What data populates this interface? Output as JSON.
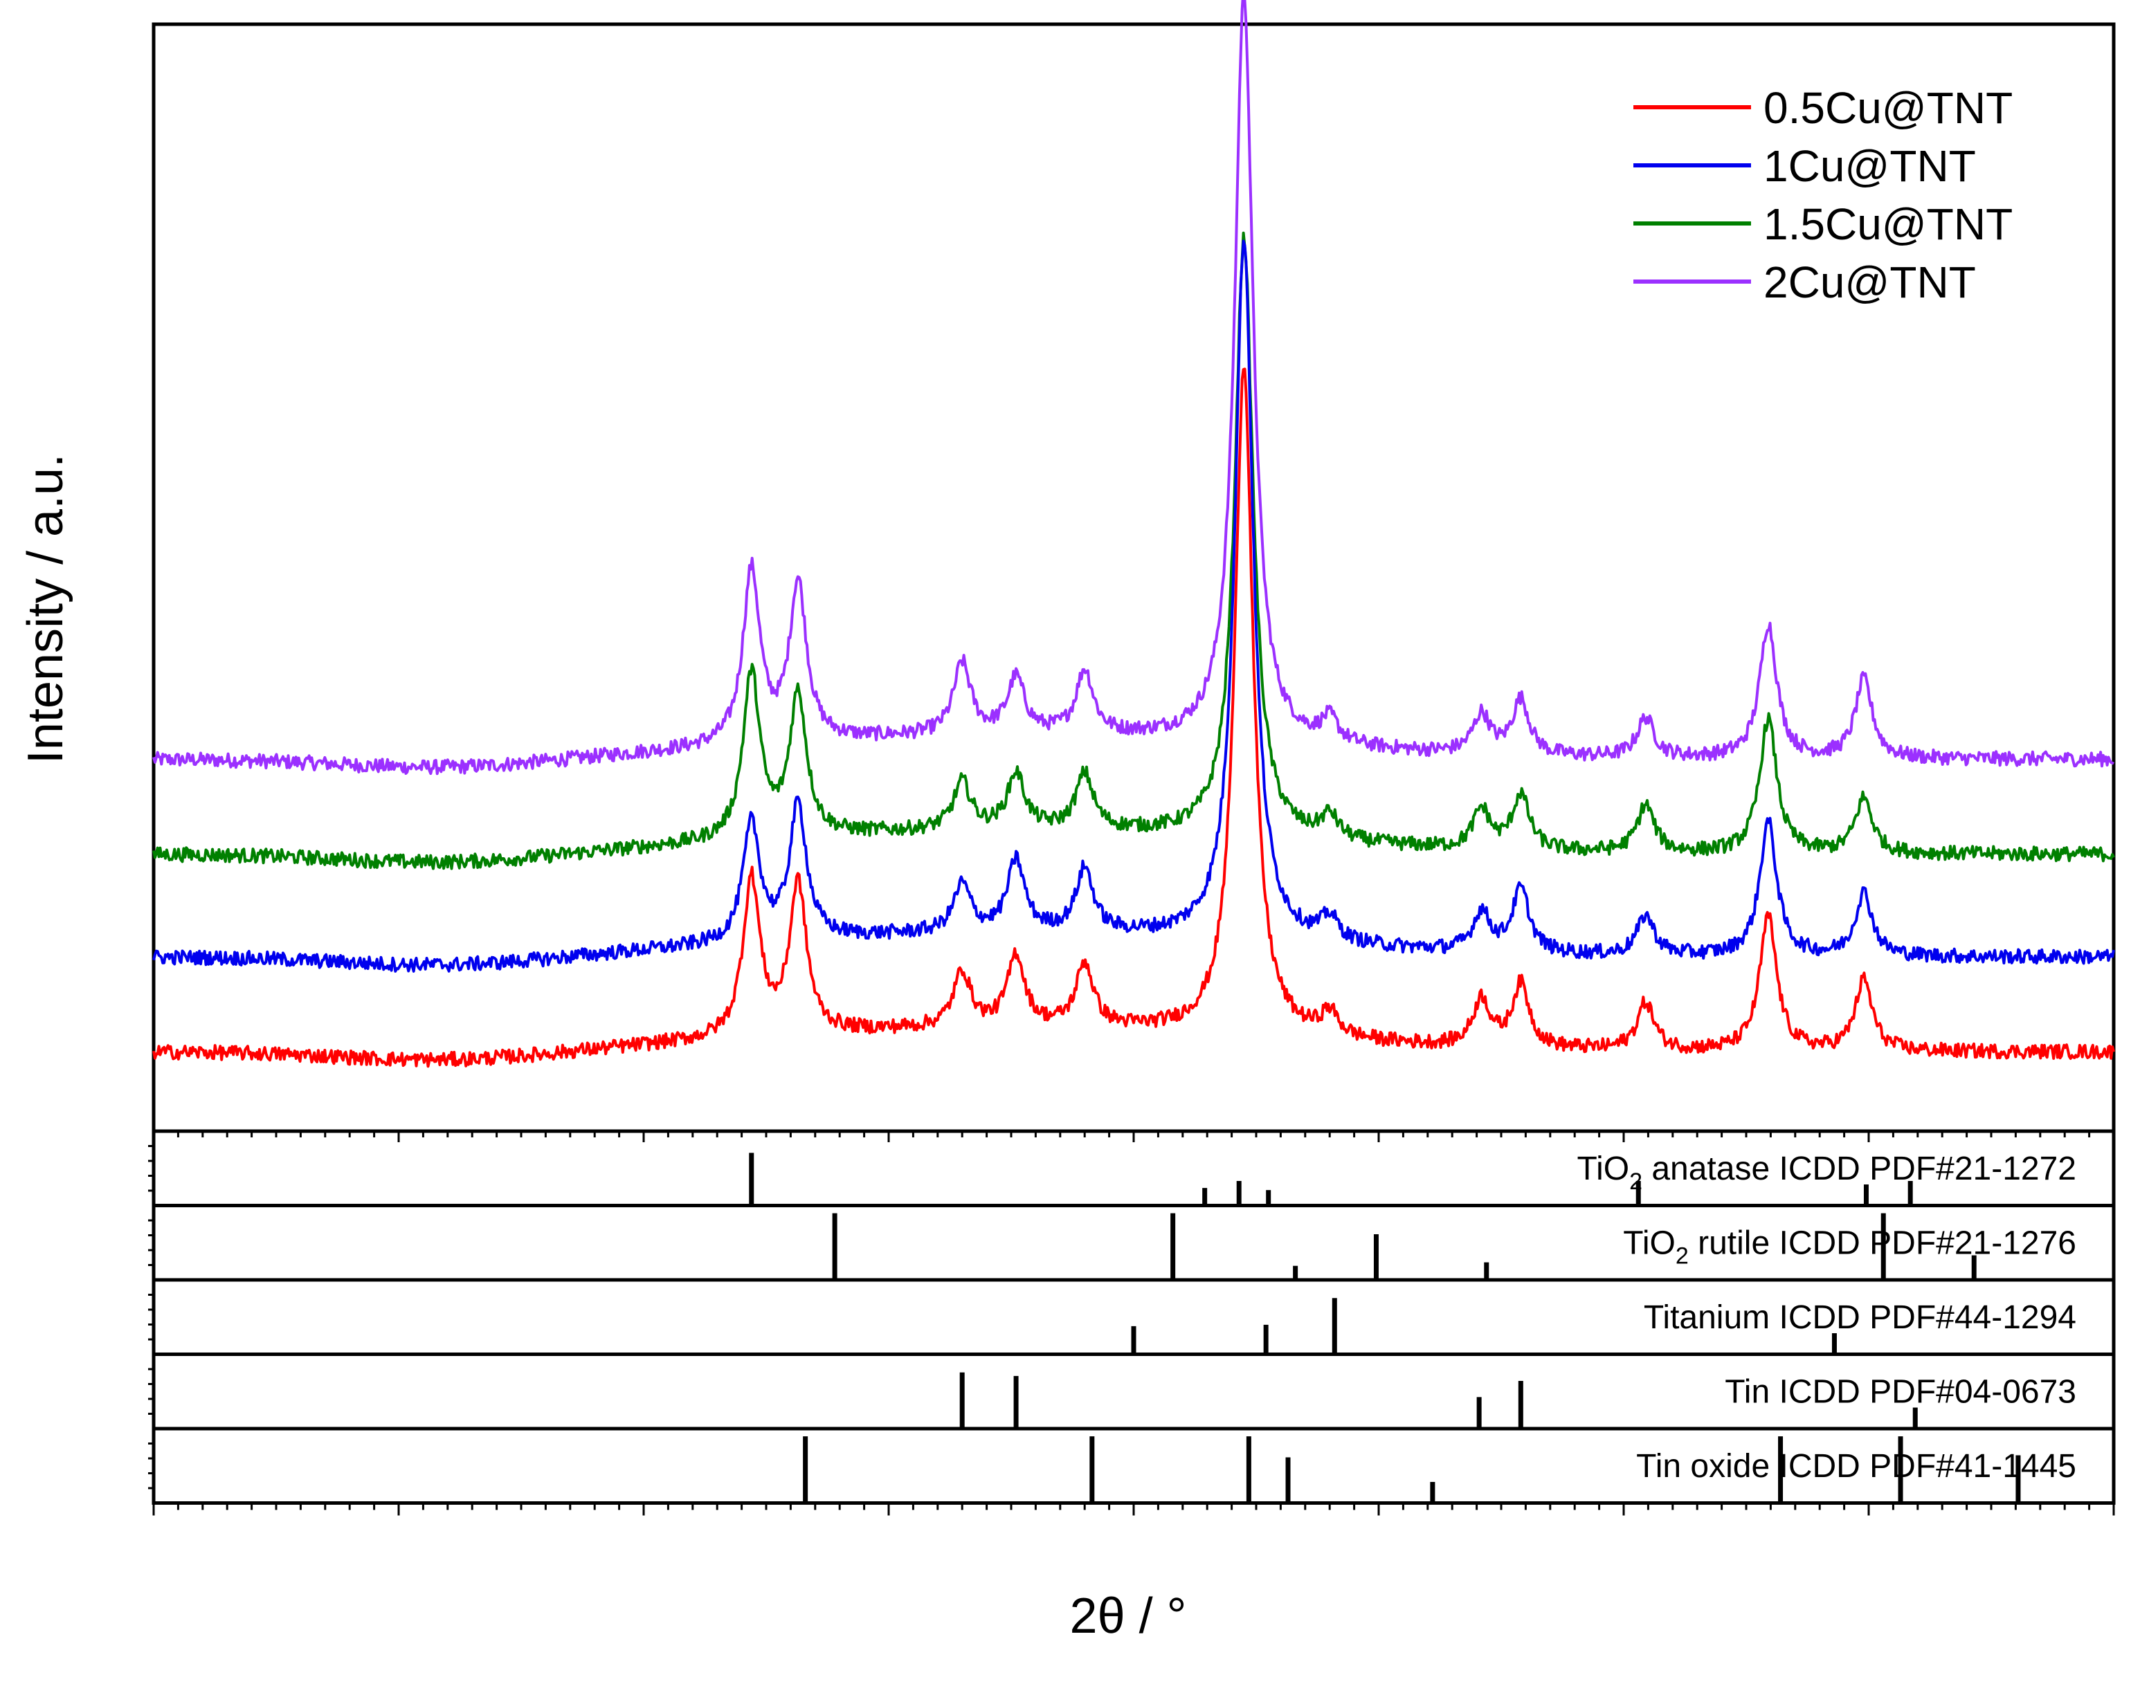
{
  "chart_data": {
    "type": "line",
    "title": "",
    "xlabel": "2θ / °",
    "ylabel": "Intensity / a.u.",
    "xlim": [
      10,
      90
    ],
    "ylim": [
      0,
      14
    ],
    "x_tick_labels_visible": false,
    "y_tick_labels_visible": false,
    "legend": {
      "position": "top-right",
      "entries": [
        "0.5Cu@TNT",
        "1Cu@TNT",
        "1.5Cu@TNT",
        "2Cu@TNT"
      ]
    },
    "peak_positions_2theta": [
      34.4,
      36.3,
      43.0,
      45.2,
      48.0,
      54.5,
      58.0,
      64.2,
      65.8,
      70.9,
      75.9,
      79.8
    ],
    "series": [
      {
        "name": "0.5Cu@TNT",
        "color": "#ff0000",
        "baseline": 1.0,
        "peaks": [
          {
            "x": 34.4,
            "intensity": 2.0
          },
          {
            "x": 36.3,
            "intensity": 1.9
          },
          {
            "x": 43.0,
            "intensity": 0.7
          },
          {
            "x": 45.2,
            "intensity": 0.9
          },
          {
            "x": 48.0,
            "intensity": 0.8
          },
          {
            "x": 54.5,
            "intensity": 8.5
          },
          {
            "x": 58.0,
            "intensity": 0.3
          },
          {
            "x": 64.2,
            "intensity": 0.6
          },
          {
            "x": 65.8,
            "intensity": 0.8
          },
          {
            "x": 70.9,
            "intensity": 0.6
          },
          {
            "x": 75.9,
            "intensity": 1.7
          },
          {
            "x": 79.8,
            "intensity": 0.9
          }
        ]
      },
      {
        "name": "1Cu@TNT",
        "color": "#0000ee",
        "baseline": 2.2,
        "peaks": [
          {
            "x": 34.4,
            "intensity": 1.5
          },
          {
            "x": 36.3,
            "intensity": 1.7
          },
          {
            "x": 43.0,
            "intensity": 0.6
          },
          {
            "x": 45.2,
            "intensity": 0.9
          },
          {
            "x": 48.0,
            "intensity": 0.8
          },
          {
            "x": 54.5,
            "intensity": 8.9
          },
          {
            "x": 58.0,
            "intensity": 0.3
          },
          {
            "x": 64.2,
            "intensity": 0.5
          },
          {
            "x": 65.8,
            "intensity": 0.8
          },
          {
            "x": 70.9,
            "intensity": 0.5
          },
          {
            "x": 75.9,
            "intensity": 1.7
          },
          {
            "x": 79.8,
            "intensity": 0.8
          }
        ]
      },
      {
        "name": "1.5Cu@TNT",
        "color": "#008000",
        "baseline": 3.5,
        "peaks": [
          {
            "x": 34.4,
            "intensity": 2.1
          },
          {
            "x": 36.3,
            "intensity": 1.8
          },
          {
            "x": 43.0,
            "intensity": 0.6
          },
          {
            "x": 45.2,
            "intensity": 0.7
          },
          {
            "x": 48.0,
            "intensity": 0.7
          },
          {
            "x": 54.5,
            "intensity": 7.6
          },
          {
            "x": 58.0,
            "intensity": 0.3
          },
          {
            "x": 64.2,
            "intensity": 0.5
          },
          {
            "x": 65.8,
            "intensity": 0.7
          },
          {
            "x": 70.9,
            "intensity": 0.6
          },
          {
            "x": 75.9,
            "intensity": 1.7
          },
          {
            "x": 79.8,
            "intensity": 0.7
          }
        ]
      },
      {
        "name": "2Cu@TNT",
        "color": "#9b30ff",
        "baseline": 4.7,
        "peaks": [
          {
            "x": 34.4,
            "intensity": 2.2
          },
          {
            "x": 36.3,
            "intensity": 2.0
          },
          {
            "x": 43.0,
            "intensity": 0.9
          },
          {
            "x": 45.2,
            "intensity": 0.7
          },
          {
            "x": 48.0,
            "intensity": 0.8
          },
          {
            "x": 54.5,
            "intensity": 9.5
          },
          {
            "x": 58.0,
            "intensity": 0.3
          },
          {
            "x": 64.2,
            "intensity": 0.5
          },
          {
            "x": 65.8,
            "intensity": 0.7
          },
          {
            "x": 70.9,
            "intensity": 0.5
          },
          {
            "x": 75.9,
            "intensity": 1.7
          },
          {
            "x": 79.8,
            "intensity": 1.0
          }
        ]
      }
    ],
    "reference_patterns": [
      {
        "label_prefix": "TiO",
        "label_sub": "2",
        "label_suffix": " anatase ICDD PDF#21-1272",
        "lines": [
          {
            "x": 34.4,
            "intensity": 0.75
          },
          {
            "x": 52.9,
            "intensity": 0.25
          },
          {
            "x": 54.3,
            "intensity": 0.35
          },
          {
            "x": 55.5,
            "intensity": 0.22
          },
          {
            "x": 70.6,
            "intensity": 0.35
          },
          {
            "x": 79.9,
            "intensity": 0.3
          },
          {
            "x": 81.7,
            "intensity": 0.35
          }
        ]
      },
      {
        "label_prefix": "TiO",
        "label_sub": "2",
        "label_suffix": " rutile ICDD PDF#21-1276",
        "lines": [
          {
            "x": 37.8,
            "intensity": 0.95
          },
          {
            "x": 51.6,
            "intensity": 0.95
          },
          {
            "x": 56.6,
            "intensity": 0.2
          },
          {
            "x": 59.9,
            "intensity": 0.65
          },
          {
            "x": 64.4,
            "intensity": 0.25
          },
          {
            "x": 80.6,
            "intensity": 0.95
          },
          {
            "x": 84.3,
            "intensity": 0.35
          }
        ]
      },
      {
        "label_prefix": "",
        "label_sub": "",
        "label_suffix": "Titanium  ICDD PDF#44-1294",
        "lines": [
          {
            "x": 50.0,
            "intensity": 0.4
          },
          {
            "x": 55.4,
            "intensity": 0.42
          },
          {
            "x": 58.2,
            "intensity": 0.8
          },
          {
            "x": 78.6,
            "intensity": 0.3
          }
        ]
      },
      {
        "label_prefix": "",
        "label_sub": "",
        "label_suffix": "Tin ICDD PDF#04-0673",
        "lines": [
          {
            "x": 43.0,
            "intensity": 0.8
          },
          {
            "x": 45.2,
            "intensity": 0.75
          },
          {
            "x": 64.1,
            "intensity": 0.45
          },
          {
            "x": 65.8,
            "intensity": 0.68
          },
          {
            "x": 81.9,
            "intensity": 0.3
          }
        ]
      },
      {
        "label_prefix": "",
        "label_sub": "",
        "label_suffix": "Tin oxide ICDD PDF#41-1445",
        "lines": [
          {
            "x": 36.6,
            "intensity": 0.95
          },
          {
            "x": 48.3,
            "intensity": 0.95
          },
          {
            "x": 54.7,
            "intensity": 0.95
          },
          {
            "x": 56.3,
            "intensity": 0.65
          },
          {
            "x": 62.2,
            "intensity": 0.3
          },
          {
            "x": 76.4,
            "intensity": 0.95
          },
          {
            "x": 81.3,
            "intensity": 0.95
          },
          {
            "x": 86.1,
            "intensity": 0.68
          }
        ]
      }
    ]
  }
}
